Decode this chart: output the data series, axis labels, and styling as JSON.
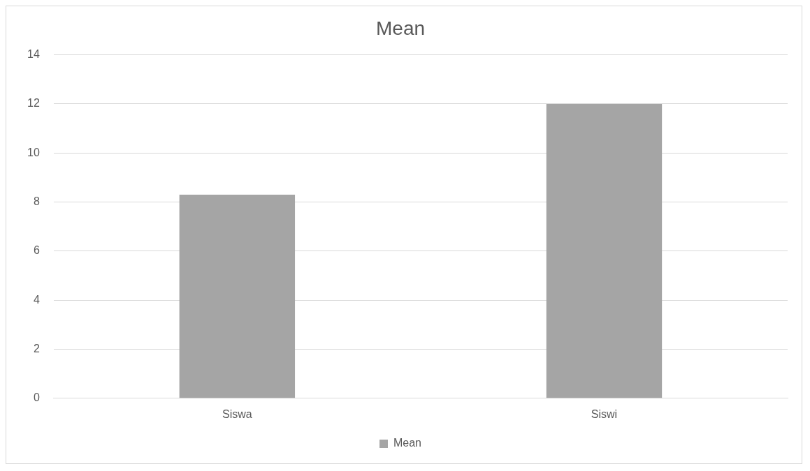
{
  "chart_data": {
    "type": "bar",
    "title": "Mean",
    "categories": [
      "Siswa",
      "Siswi"
    ],
    "series": [
      {
        "name": "Mean",
        "color": "#a5a5a5",
        "values": [
          8.3,
          12.0
        ]
      }
    ],
    "ylim": [
      0,
      14
    ],
    "yticks": [
      0,
      2,
      4,
      6,
      8,
      10,
      12,
      14
    ],
    "grid": "y",
    "legend": "bottom"
  }
}
